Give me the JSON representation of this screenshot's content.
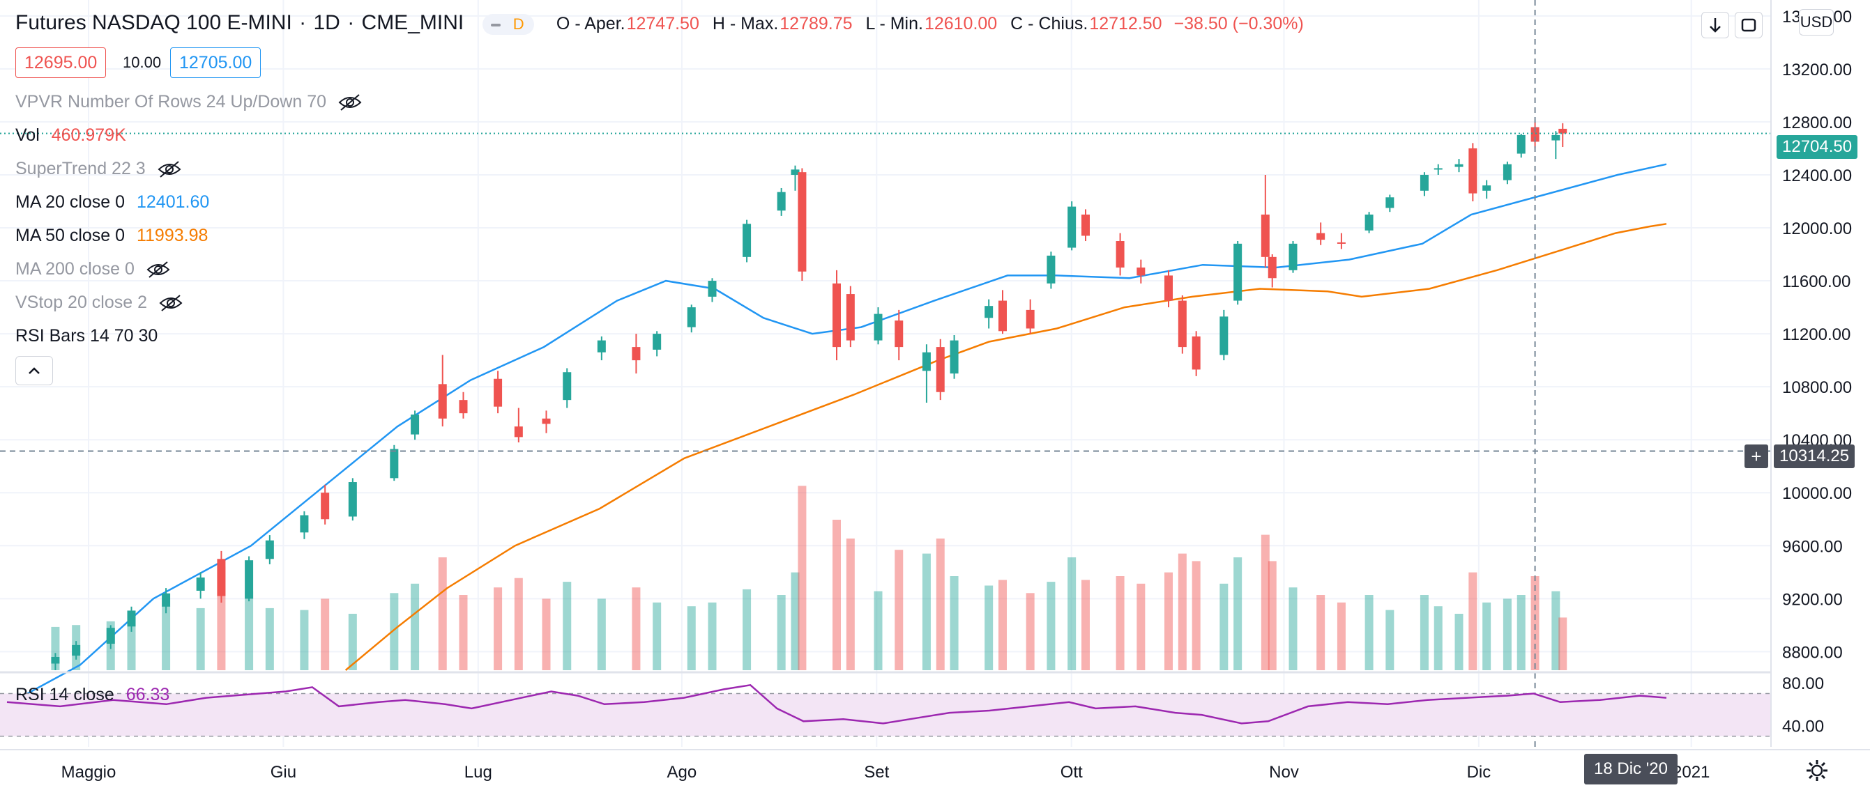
{
  "header": {
    "symbol": "Futures NASDAQ 100 E-MINI",
    "interval": "1D",
    "exchange": "CME_MINI",
    "dot": "·",
    "badge": "D",
    "o_label": "O - Aper.",
    "o_value": "12747.50",
    "h_label": "H - Max.",
    "h_value": "12789.75",
    "l_label": "L - Min.",
    "l_value": "12610.00",
    "c_label": "C - Chius.",
    "c_value": "12712.50",
    "change": "−38.50 (−0.30%)"
  },
  "bidask": {
    "bid": "12695.00",
    "spread": "10.00",
    "ask": "12705.00"
  },
  "indicators": [
    {
      "label": "VPVR Number Of Rows 24 Up/Down 70",
      "value": "",
      "hidden": true
    },
    {
      "label": "Vol",
      "value": "460.979K",
      "hidden": false
    },
    {
      "label": "SuperTrend 22 3",
      "value": "",
      "hidden": true
    },
    {
      "label": "MA 20 close 0",
      "value": "12401.60",
      "hidden": false
    },
    {
      "label": "MA 50 close 0",
      "value": "11993.98",
      "hidden": false
    },
    {
      "label": "MA 200 close 0",
      "value": "",
      "hidden": true
    },
    {
      "label": "VStop 20 close 2",
      "value": "",
      "hidden": true
    },
    {
      "label": "RSI Bars 14 70 30",
      "value": "",
      "hidden": false
    }
  ],
  "rsi": {
    "label": "RSI 14 close",
    "value": "66.33"
  },
  "currency": "USD",
  "last_price_tag": "12704.50",
  "crosshair_price_tag": "10314.25",
  "crosshair_date_tag": "18 Dic '20",
  "colors": {
    "up": "#26a69a",
    "down": "#ef5350",
    "ma20": "#2196f3",
    "ma50": "#f57c00",
    "rsi": "#9c27b0",
    "rsi_band": "#f3e5f5"
  },
  "chart_data": {
    "type": "candlestick",
    "title": "Futures NASDAQ 100 E-MINI · 1D · CME_MINI",
    "y_axis": {
      "ticks": [
        13600,
        13200,
        12800,
        12400,
        12000,
        11600,
        11200,
        10800,
        10400,
        10000,
        9600,
        9200,
        8800
      ],
      "range": [
        8660,
        13720
      ]
    },
    "x_axis": {
      "labels": [
        "Maggio",
        "Giu",
        "Lug",
        "Ago",
        "Set",
        "Ott",
        "Nov",
        "Dic",
        "2021"
      ]
    },
    "rsi_axis": {
      "ticks": [
        80,
        40
      ],
      "upper_band": 70,
      "lower_band": 30
    },
    "candles": [
      {
        "date": "2020-05-18",
        "open": 8710,
        "high": 8790,
        "low": 8660,
        "close": 8760,
        "volume": 0.23
      },
      {
        "date": "2020-05-21",
        "open": 8770,
        "high": 8880,
        "low": 8740,
        "close": 8850,
        "volume": 0.24
      },
      {
        "date": "2020-05-26",
        "open": 8860,
        "high": 9000,
        "low": 8820,
        "close": 8980,
        "volume": 0.26
      },
      {
        "date": "2020-05-29",
        "open": 8990,
        "high": 9140,
        "low": 8950,
        "close": 9110,
        "volume": 0.3
      },
      {
        "date": "2020-06-03",
        "open": 9140,
        "high": 9280,
        "low": 9090,
        "close": 9240,
        "volume": 0.34
      },
      {
        "date": "2020-06-08",
        "open": 9260,
        "high": 9400,
        "low": 9200,
        "close": 9360,
        "volume": 0.33
      },
      {
        "date": "2020-06-11",
        "open": 9500,
        "high": 9560,
        "low": 9170,
        "close": 9220,
        "volume": 0.55
      },
      {
        "date": "2020-06-15",
        "open": 9200,
        "high": 9520,
        "low": 9180,
        "close": 9490,
        "volume": 0.42
      },
      {
        "date": "2020-06-18",
        "open": 9500,
        "high": 9680,
        "low": 9460,
        "close": 9640,
        "volume": 0.33
      },
      {
        "date": "2020-06-23",
        "open": 9700,
        "high": 9860,
        "low": 9650,
        "close": 9830,
        "volume": 0.32
      },
      {
        "date": "2020-06-26",
        "open": 10000,
        "high": 10060,
        "low": 9760,
        "close": 9800,
        "volume": 0.38
      },
      {
        "date": "2020-06-30",
        "open": 9820,
        "high": 10110,
        "low": 9790,
        "close": 10080,
        "volume": 0.3
      },
      {
        "date": "2020-07-06",
        "open": 10110,
        "high": 10360,
        "low": 10090,
        "close": 10330,
        "volume": 0.41
      },
      {
        "date": "2020-07-09",
        "open": 10440,
        "high": 10620,
        "low": 10400,
        "close": 10590,
        "volume": 0.46
      },
      {
        "date": "2020-07-13",
        "open": 10820,
        "high": 11040,
        "low": 10500,
        "close": 10560,
        "volume": 0.6
      },
      {
        "date": "2020-07-16",
        "open": 10700,
        "high": 10760,
        "low": 10560,
        "close": 10600,
        "volume": 0.4
      },
      {
        "date": "2020-07-21",
        "open": 10860,
        "high": 10920,
        "low": 10600,
        "close": 10650,
        "volume": 0.44
      },
      {
        "date": "2020-07-24",
        "open": 10500,
        "high": 10640,
        "low": 10380,
        "close": 10420,
        "volume": 0.49
      },
      {
        "date": "2020-07-28",
        "open": 10560,
        "high": 10620,
        "low": 10450,
        "close": 10520,
        "volume": 0.38
      },
      {
        "date": "2020-07-31",
        "open": 10700,
        "high": 10940,
        "low": 10640,
        "close": 10910,
        "volume": 0.47
      },
      {
        "date": "2020-08-05",
        "open": 11060,
        "high": 11180,
        "low": 11000,
        "close": 11150,
        "volume": 0.38
      },
      {
        "date": "2020-08-10",
        "open": 11100,
        "high": 11200,
        "low": 10900,
        "close": 11000,
        "volume": 0.44
      },
      {
        "date": "2020-08-13",
        "open": 11080,
        "high": 11220,
        "low": 11030,
        "close": 11200,
        "volume": 0.36
      },
      {
        "date": "2020-08-18",
        "open": 11250,
        "high": 11420,
        "low": 11210,
        "close": 11400,
        "volume": 0.34
      },
      {
        "date": "2020-08-21",
        "open": 11480,
        "high": 11620,
        "low": 11440,
        "close": 11600,
        "volume": 0.36
      },
      {
        "date": "2020-08-26",
        "open": 11780,
        "high": 12060,
        "low": 11740,
        "close": 12030,
        "volume": 0.43
      },
      {
        "date": "2020-08-31",
        "open": 12130,
        "high": 12300,
        "low": 12090,
        "close": 12270,
        "volume": 0.4
      },
      {
        "date": "2020-09-02",
        "open": 12400,
        "high": 12470,
        "low": 12280,
        "close": 12440,
        "volume": 0.52
      },
      {
        "date": "2020-09-03",
        "open": 12420,
        "high": 12450,
        "low": 11600,
        "close": 11670,
        "volume": 0.98
      },
      {
        "date": "2020-09-08",
        "open": 11580,
        "high": 11680,
        "low": 11000,
        "close": 11100,
        "volume": 0.8
      },
      {
        "date": "2020-09-10",
        "open": 11500,
        "high": 11560,
        "low": 11100,
        "close": 11150,
        "volume": 0.7
      },
      {
        "date": "2020-09-14",
        "open": 11150,
        "high": 11400,
        "low": 11120,
        "close": 11350,
        "volume": 0.42
      },
      {
        "date": "2020-09-17",
        "open": 11300,
        "high": 11380,
        "low": 11000,
        "close": 11100,
        "volume": 0.64
      },
      {
        "date": "2020-09-21",
        "open": 10920,
        "high": 11120,
        "low": 10680,
        "close": 11060,
        "volume": 0.62
      },
      {
        "date": "2020-09-23",
        "open": 11100,
        "high": 11160,
        "low": 10700,
        "close": 10760,
        "volume": 0.7
      },
      {
        "date": "2020-09-25",
        "open": 10900,
        "high": 11190,
        "low": 10860,
        "close": 11150,
        "volume": 0.5
      },
      {
        "date": "2020-09-30",
        "open": 11320,
        "high": 11460,
        "low": 11240,
        "close": 11410,
        "volume": 0.45
      },
      {
        "date": "2020-10-02",
        "open": 11450,
        "high": 11530,
        "low": 11200,
        "close": 11220,
        "volume": 0.48
      },
      {
        "date": "2020-10-06",
        "open": 11380,
        "high": 11460,
        "low": 11200,
        "close": 11240,
        "volume": 0.41
      },
      {
        "date": "2020-10-09",
        "open": 11580,
        "high": 11820,
        "low": 11540,
        "close": 11790,
        "volume": 0.47
      },
      {
        "date": "2020-10-12",
        "open": 11850,
        "high": 12200,
        "low": 11830,
        "close": 12160,
        "volume": 0.6
      },
      {
        "date": "2020-10-14",
        "open": 12100,
        "high": 12140,
        "low": 11900,
        "close": 11940,
        "volume": 0.48
      },
      {
        "date": "2020-10-19",
        "open": 11900,
        "high": 11960,
        "low": 11640,
        "close": 11700,
        "volume": 0.5
      },
      {
        "date": "2020-10-22",
        "open": 11700,
        "high": 11760,
        "low": 11580,
        "close": 11640,
        "volume": 0.46
      },
      {
        "date": "2020-10-26",
        "open": 11640,
        "high": 11680,
        "low": 11400,
        "close": 11450,
        "volume": 0.52
      },
      {
        "date": "2020-10-28",
        "open": 11450,
        "high": 11490,
        "low": 11050,
        "close": 11100,
        "volume": 0.62
      },
      {
        "date": "2020-10-30",
        "open": 11180,
        "high": 11220,
        "low": 10880,
        "close": 10930,
        "volume": 0.58
      },
      {
        "date": "2020-11-03",
        "open": 11040,
        "high": 11380,
        "low": 11000,
        "close": 11330,
        "volume": 0.46
      },
      {
        "date": "2020-11-05",
        "open": 11450,
        "high": 11900,
        "low": 11420,
        "close": 11880,
        "volume": 0.6
      },
      {
        "date": "2020-11-09",
        "open": 12100,
        "high": 12400,
        "low": 11700,
        "close": 11780,
        "volume": 0.72
      },
      {
        "date": "2020-11-10",
        "open": 11780,
        "high": 11800,
        "low": 11550,
        "close": 11620,
        "volume": 0.58
      },
      {
        "date": "2020-11-13",
        "open": 11680,
        "high": 11900,
        "low": 11660,
        "close": 11880,
        "volume": 0.44
      },
      {
        "date": "2020-11-17",
        "open": 11960,
        "high": 12040,
        "low": 11870,
        "close": 11910,
        "volume": 0.4
      },
      {
        "date": "2020-11-20",
        "open": 11890,
        "high": 11960,
        "low": 11840,
        "close": 11880,
        "volume": 0.36
      },
      {
        "date": "2020-11-24",
        "open": 11980,
        "high": 12120,
        "low": 11960,
        "close": 12100,
        "volume": 0.4
      },
      {
        "date": "2020-11-27",
        "open": 12150,
        "high": 12250,
        "low": 12120,
        "close": 12230,
        "volume": 0.32
      },
      {
        "date": "2020-12-02",
        "open": 12280,
        "high": 12420,
        "low": 12240,
        "close": 12400,
        "volume": 0.4
      },
      {
        "date": "2020-12-04",
        "open": 12440,
        "high": 12480,
        "low": 12400,
        "close": 12450,
        "volume": 0.34
      },
      {
        "date": "2020-12-07",
        "open": 12460,
        "high": 12520,
        "low": 12420,
        "close": 12480,
        "volume": 0.3
      },
      {
        "date": "2020-12-09",
        "open": 12600,
        "high": 12640,
        "low": 12200,
        "close": 12260,
        "volume": 0.52
      },
      {
        "date": "2020-12-11",
        "open": 12280,
        "high": 12360,
        "low": 12220,
        "close": 12320,
        "volume": 0.36
      },
      {
        "date": "2020-12-14",
        "open": 12360,
        "high": 12500,
        "low": 12330,
        "close": 12480,
        "volume": 0.38
      },
      {
        "date": "2020-12-16",
        "open": 12560,
        "high": 12710,
        "low": 12530,
        "close": 12700,
        "volume": 0.4
      },
      {
        "date": "2020-12-18",
        "open": 12760,
        "high": 12800,
        "low": 12600,
        "close": 12650,
        "volume": 0.5
      },
      {
        "date": "2020-12-21",
        "open": 12660,
        "high": 12730,
        "low": 12520,
        "close": 12700,
        "volume": 0.42
      },
      {
        "date": "2020-12-22",
        "open": 12747.5,
        "high": 12789.75,
        "low": 12610,
        "close": 12712.5,
        "volume": 0.28
      }
    ],
    "ma20": [
      [
        0,
        8400
      ],
      [
        6,
        8700
      ],
      [
        12,
        9200
      ],
      [
        20,
        9600
      ],
      [
        26,
        10050
      ],
      [
        32,
        10500
      ],
      [
        38,
        10850
      ],
      [
        44,
        11100
      ],
      [
        50,
        11450
      ],
      [
        54,
        11600
      ],
      [
        58,
        11540
      ],
      [
        62,
        11320
      ],
      [
        66,
        11200
      ],
      [
        70,
        11250
      ],
      [
        76,
        11450
      ],
      [
        82,
        11640
      ],
      [
        86,
        11640
      ],
      [
        92,
        11620
      ],
      [
        98,
        11720
      ],
      [
        104,
        11700
      ],
      [
        110,
        11760
      ],
      [
        116,
        11880
      ],
      [
        120,
        12100
      ],
      [
        126,
        12250
      ],
      [
        132,
        12400
      ],
      [
        136,
        12480
      ]
    ],
    "ma50": [
      [
        40,
        8660
      ],
      [
        46,
        8980
      ],
      [
        52,
        9280
      ],
      [
        60,
        9600
      ],
      [
        70,
        9880
      ],
      [
        80,
        10260
      ],
      [
        90,
        10500
      ],
      [
        100,
        10740
      ],
      [
        110,
        11000
      ],
      [
        116,
        11140
      ],
      [
        124,
        11240
      ],
      [
        132,
        11400
      ],
      [
        140,
        11480
      ],
      [
        148,
        11540
      ],
      [
        156,
        11520
      ],
      [
        160,
        11480
      ],
      [
        168,
        11540
      ],
      [
        176,
        11680
      ],
      [
        184,
        11840
      ],
      [
        190,
        11960
      ],
      [
        194,
        12010
      ],
      [
        196,
        12030
      ]
    ],
    "rsi": [
      [
        0,
        62
      ],
      [
        8,
        58
      ],
      [
        16,
        64
      ],
      [
        24,
        60
      ],
      [
        30,
        66
      ],
      [
        38,
        70
      ],
      [
        42,
        72
      ],
      [
        46,
        76
      ],
      [
        50,
        58
      ],
      [
        56,
        62
      ],
      [
        60,
        64
      ],
      [
        66,
        60
      ],
      [
        70,
        56
      ],
      [
        76,
        64
      ],
      [
        82,
        72
      ],
      [
        86,
        68
      ],
      [
        90,
        60
      ],
      [
        96,
        62
      ],
      [
        102,
        66
      ],
      [
        108,
        74
      ],
      [
        112,
        78
      ],
      [
        116,
        56
      ],
      [
        120,
        44
      ],
      [
        126,
        46
      ],
      [
        132,
        42
      ],
      [
        138,
        48
      ],
      [
        142,
        52
      ],
      [
        148,
        54
      ],
      [
        154,
        58
      ],
      [
        160,
        62
      ],
      [
        164,
        56
      ],
      [
        170,
        58
      ],
      [
        176,
        52
      ],
      [
        180,
        50
      ],
      [
        186,
        42
      ],
      [
        190,
        44
      ],
      [
        196,
        58
      ],
      [
        202,
        62
      ],
      [
        208,
        60
      ],
      [
        214,
        64
      ],
      [
        220,
        66
      ],
      [
        226,
        68
      ],
      [
        230,
        70
      ],
      [
        234,
        62
      ],
      [
        240,
        64
      ],
      [
        246,
        68
      ],
      [
        250,
        66
      ]
    ],
    "rsi_value": 66.33
  },
  "time_labels": [
    {
      "text": "Maggio",
      "pos": 0.05
    },
    {
      "text": "Giu",
      "pos": 0.16
    },
    {
      "text": "Lug",
      "pos": 0.27
    },
    {
      "text": "Ago",
      "pos": 0.385
    },
    {
      "text": "Set",
      "pos": 0.495
    },
    {
      "text": "Ott",
      "pos": 0.605
    },
    {
      "text": "Nov",
      "pos": 0.725
    },
    {
      "text": "Dic",
      "pos": 0.835
    },
    {
      "text": "2021",
      "pos": 0.955
    }
  ]
}
